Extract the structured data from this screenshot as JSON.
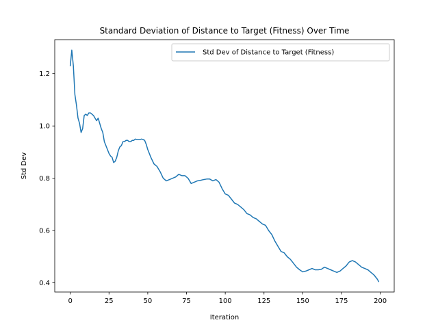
{
  "chart_data": {
    "type": "line",
    "title": "Standard Deviation of Distance to Target (Fitness) Over Time",
    "xlabel": "Iteration",
    "ylabel": "Std Dev",
    "xlim": [
      -10,
      209
    ],
    "ylim": [
      0.365,
      1.33
    ],
    "xticks": [
      0,
      25,
      50,
      75,
      100,
      125,
      150,
      175,
      200
    ],
    "yticks": [
      0.4,
      0.6,
      0.8,
      1.0,
      1.2
    ],
    "ytick_labels": [
      "0.4",
      "0.6",
      "0.8",
      "1.0",
      "1.2"
    ],
    "grid": false,
    "legend": "upper right",
    "line_color": "#1f77b4",
    "series": [
      {
        "name": "Std Dev of Distance to Target (Fitness)",
        "x": [
          0,
          1,
          2,
          3,
          4,
          5,
          6,
          7,
          8,
          9,
          10,
          11,
          12,
          13,
          14,
          15,
          16,
          17,
          18,
          19,
          20,
          21,
          22,
          23,
          24,
          25,
          26,
          27,
          28,
          29,
          30,
          31,
          32,
          33,
          34,
          35,
          36,
          37,
          38,
          39,
          40,
          41,
          42,
          43,
          44,
          45,
          46,
          47,
          48,
          49,
          50,
          52,
          54,
          56,
          58,
          60,
          62,
          64,
          66,
          68,
          70,
          72,
          74,
          76,
          78,
          80,
          82,
          84,
          86,
          88,
          90,
          92,
          94,
          96,
          98,
          100,
          102,
          104,
          106,
          108,
          110,
          112,
          114,
          116,
          118,
          120,
          122,
          124,
          126,
          128,
          130,
          132,
          134,
          136,
          138,
          140,
          142,
          144,
          146,
          148,
          150,
          152,
          154,
          156,
          158,
          160,
          162,
          164,
          166,
          168,
          170,
          172,
          174,
          176,
          178,
          180,
          182,
          184,
          186,
          188,
          190,
          192,
          194,
          196,
          198,
          199
        ],
        "y": [
          1.23,
          1.29,
          1.23,
          1.12,
          1.08,
          1.03,
          1.01,
          0.975,
          0.99,
          1.04,
          1.045,
          1.04,
          1.05,
          1.05,
          1.045,
          1.04,
          1.03,
          1.02,
          1.03,
          1.01,
          0.99,
          0.975,
          0.94,
          0.925,
          0.91,
          0.895,
          0.885,
          0.88,
          0.86,
          0.865,
          0.88,
          0.905,
          0.92,
          0.925,
          0.94,
          0.94,
          0.945,
          0.945,
          0.94,
          0.94,
          0.945,
          0.945,
          0.95,
          0.948,
          0.948,
          0.948,
          0.95,
          0.948,
          0.945,
          0.93,
          0.91,
          0.88,
          0.855,
          0.845,
          0.825,
          0.8,
          0.79,
          0.795,
          0.8,
          0.805,
          0.815,
          0.81,
          0.81,
          0.8,
          0.78,
          0.785,
          0.79,
          0.792,
          0.795,
          0.797,
          0.797,
          0.79,
          0.795,
          0.785,
          0.76,
          0.74,
          0.735,
          0.72,
          0.705,
          0.7,
          0.69,
          0.68,
          0.665,
          0.66,
          0.65,
          0.645,
          0.635,
          0.625,
          0.62,
          0.6,
          0.585,
          0.56,
          0.54,
          0.52,
          0.515,
          0.5,
          0.49,
          0.475,
          0.46,
          0.45,
          0.442,
          0.445,
          0.45,
          0.455,
          0.45,
          0.45,
          0.452,
          0.46,
          0.455,
          0.45,
          0.445,
          0.44,
          0.445,
          0.455,
          0.465,
          0.48,
          0.485,
          0.48,
          0.47,
          0.46,
          0.455,
          0.45,
          0.44,
          0.43,
          0.415,
          0.405
        ]
      }
    ]
  }
}
